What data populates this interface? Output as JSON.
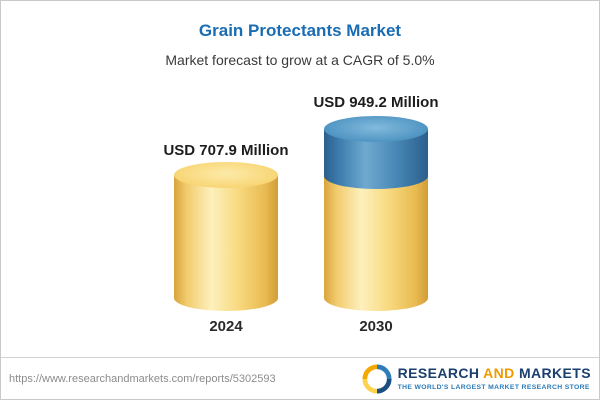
{
  "header": {
    "title": "Grain Protectants Market",
    "subtitle": "Market forecast to grow at a CAGR of 5.0%"
  },
  "chart_data": {
    "type": "bar",
    "title": "Grain Protectants Market",
    "subtitle": "Market forecast to grow at a CAGR of 5.0%",
    "unit": "USD Million",
    "cagr": "5.0%",
    "categories": [
      "2024",
      "2030"
    ],
    "values": [
      707.9,
      949.2
    ],
    "value_labels": [
      "USD 707.9 Million",
      "USD 949.2 Million"
    ],
    "bar_colors": {
      "base": "#F3CE6F",
      "growth_top": "#3E7FAF"
    },
    "ylim": [
      0,
      1000
    ],
    "grid": false,
    "legend_position": "none"
  },
  "footer": {
    "url": "https://www.researchandmarkets.com/reports/5302593",
    "logo": {
      "research": "RESEARCH",
      "and": "AND",
      "markets": "MARKETS",
      "tagline": "THE WORLD'S LARGEST MARKET RESEARCH STORE"
    }
  }
}
